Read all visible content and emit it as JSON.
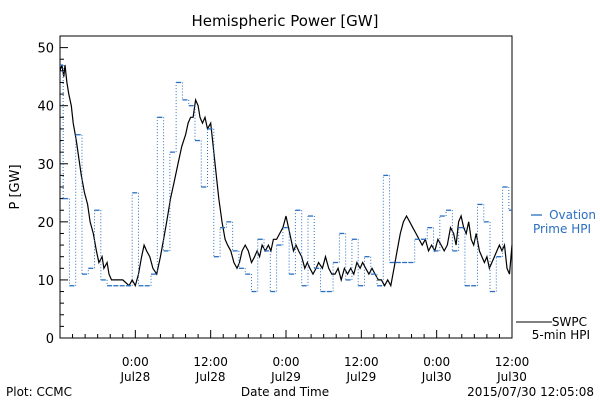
{
  "footer": {
    "plot_credit": "Plot: CCMC",
    "timestamp": "2015/07/30 12:05:08"
  },
  "chart_data": {
    "type": "line",
    "title": "Hemispheric Power [GW]",
    "xlabel": "Date and Time",
    "ylabel": "P [GW]",
    "ylim": [
      0,
      52
    ],
    "y_ticks": [
      0,
      10,
      20,
      30,
      40,
      50
    ],
    "x_unit": "hours since 2015-07-27 12:00 UT",
    "xlim": [
      0,
      72
    ],
    "x_ticks": [
      {
        "x": 12,
        "time": "0:00",
        "date": "Jul28"
      },
      {
        "x": 24,
        "time": "12:00",
        "date": "Jul28"
      },
      {
        "x": 36,
        "time": "0:00",
        "date": "Jul29"
      },
      {
        "x": 48,
        "time": "12:00",
        "date": "Jul29"
      },
      {
        "x": 60,
        "time": "0:00",
        "date": "Jul30"
      },
      {
        "x": 72,
        "time": "12:00",
        "date": "Jul30"
      }
    ],
    "grid": false,
    "colors": {
      "swpc": "#000000",
      "ovation": "#2a6fc0"
    },
    "legend": [
      {
        "key": "ovation",
        "lines": [
          "Ovation",
          "Prime HPI"
        ],
        "color": "#2a6fc0",
        "style": "dashed"
      },
      {
        "key": "swpc",
        "lines": [
          "SWPC",
          "5-min HPI"
        ],
        "color": "#000000",
        "style": "solid"
      }
    ],
    "series": [
      {
        "name": "SWPC 5-min HPI",
        "color": "#000000",
        "style": "solid",
        "points": [
          [
            0.0,
            46
          ],
          [
            0.3,
            47
          ],
          [
            0.6,
            45
          ],
          [
            0.8,
            47
          ],
          [
            1.1,
            44
          ],
          [
            1.4,
            42
          ],
          [
            1.8,
            40
          ],
          [
            2.1,
            37
          ],
          [
            2.6,
            34
          ],
          [
            3.0,
            31
          ],
          [
            3.4,
            28
          ],
          [
            3.9,
            25
          ],
          [
            4.4,
            23
          ],
          [
            4.8,
            20
          ],
          [
            5.3,
            18
          ],
          [
            5.8,
            15
          ],
          [
            6.2,
            13
          ],
          [
            6.7,
            14
          ],
          [
            7.0,
            12
          ],
          [
            7.5,
            13
          ],
          [
            7.8,
            11
          ],
          [
            8.2,
            10
          ],
          [
            9.0,
            10
          ],
          [
            10.0,
            10
          ],
          [
            11.0,
            9
          ],
          [
            11.5,
            10
          ],
          [
            12.0,
            9
          ],
          [
            12.5,
            11
          ],
          [
            13.0,
            14
          ],
          [
            13.4,
            16
          ],
          [
            13.8,
            15
          ],
          [
            14.3,
            14
          ],
          [
            14.8,
            12
          ],
          [
            15.4,
            11
          ],
          [
            16.0,
            14
          ],
          [
            16.5,
            17
          ],
          [
            17.0,
            20
          ],
          [
            17.6,
            24
          ],
          [
            18.2,
            27
          ],
          [
            18.8,
            30
          ],
          [
            19.4,
            33
          ],
          [
            20.0,
            35
          ],
          [
            20.4,
            37
          ],
          [
            20.8,
            38
          ],
          [
            21.2,
            38
          ],
          [
            21.6,
            41
          ],
          [
            22.0,
            40
          ],
          [
            22.3,
            38
          ],
          [
            22.7,
            37
          ],
          [
            23.1,
            38
          ],
          [
            23.5,
            36
          ],
          [
            24.0,
            37
          ],
          [
            24.4,
            33
          ],
          [
            24.9,
            28
          ],
          [
            25.3,
            24
          ],
          [
            25.8,
            20
          ],
          [
            26.3,
            17
          ],
          [
            26.7,
            16
          ],
          [
            27.2,
            15
          ],
          [
            27.7,
            13
          ],
          [
            28.2,
            12
          ],
          [
            28.6,
            13
          ],
          [
            29.0,
            15
          ],
          [
            29.5,
            16
          ],
          [
            30.0,
            15
          ],
          [
            30.5,
            13
          ],
          [
            31.0,
            14
          ],
          [
            31.4,
            15
          ],
          [
            31.8,
            14
          ],
          [
            32.2,
            16
          ],
          [
            32.7,
            15
          ],
          [
            33.2,
            16
          ],
          [
            33.6,
            15
          ],
          [
            34.0,
            17
          ],
          [
            34.5,
            17
          ],
          [
            35.0,
            18
          ],
          [
            35.5,
            19
          ],
          [
            36.0,
            21
          ],
          [
            36.4,
            19
          ],
          [
            36.8,
            17
          ],
          [
            37.2,
            15
          ],
          [
            37.6,
            16
          ],
          [
            38.0,
            15
          ],
          [
            38.5,
            14
          ],
          [
            39.0,
            12
          ],
          [
            39.4,
            13
          ],
          [
            39.8,
            12
          ],
          [
            40.3,
            11
          ],
          [
            40.8,
            12
          ],
          [
            41.2,
            13
          ],
          [
            41.8,
            12
          ],
          [
            42.3,
            14
          ],
          [
            42.8,
            12
          ],
          [
            43.3,
            11
          ],
          [
            43.8,
            11
          ],
          [
            44.3,
            12
          ],
          [
            44.8,
            10
          ],
          [
            45.3,
            12
          ],
          [
            45.8,
            11
          ],
          [
            46.3,
            12
          ],
          [
            46.8,
            11
          ],
          [
            47.3,
            13
          ],
          [
            47.8,
            12
          ],
          [
            48.2,
            13
          ],
          [
            48.7,
            12
          ],
          [
            49.2,
            11
          ],
          [
            49.7,
            12
          ],
          [
            50.2,
            11
          ],
          [
            50.7,
            10
          ],
          [
            51.2,
            10
          ],
          [
            51.7,
            9
          ],
          [
            52.2,
            10
          ],
          [
            52.7,
            9
          ],
          [
            53.2,
            12
          ],
          [
            53.7,
            15
          ],
          [
            54.2,
            18
          ],
          [
            54.7,
            20
          ],
          [
            55.2,
            21
          ],
          [
            55.7,
            20
          ],
          [
            56.2,
            19
          ],
          [
            56.7,
            18
          ],
          [
            57.2,
            17
          ],
          [
            57.7,
            16
          ],
          [
            58.2,
            17
          ],
          [
            58.7,
            15
          ],
          [
            59.2,
            16
          ],
          [
            59.7,
            15
          ],
          [
            60.2,
            17
          ],
          [
            60.7,
            16
          ],
          [
            61.2,
            15
          ],
          [
            61.7,
            16
          ],
          [
            62.2,
            19
          ],
          [
            62.7,
            18
          ],
          [
            63.1,
            16
          ],
          [
            63.5,
            20
          ],
          [
            63.9,
            21
          ],
          [
            64.3,
            19
          ],
          [
            64.7,
            18
          ],
          [
            65.1,
            20
          ],
          [
            65.5,
            17
          ],
          [
            65.9,
            16
          ],
          [
            66.3,
            18
          ],
          [
            66.8,
            15
          ],
          [
            67.2,
            14
          ],
          [
            67.6,
            13
          ],
          [
            68.0,
            14
          ],
          [
            68.4,
            12
          ],
          [
            68.8,
            13
          ],
          [
            69.2,
            14
          ],
          [
            69.6,
            15
          ],
          [
            70.0,
            16
          ],
          [
            70.4,
            15
          ],
          [
            70.8,
            16
          ],
          [
            71.2,
            12
          ],
          [
            71.6,
            11
          ],
          [
            72.0,
            16
          ]
        ]
      },
      {
        "name": "Ovation Prime HPI",
        "color": "#2a6fc0",
        "style": "dashed-step",
        "points": [
          [
            0.0,
            47
          ],
          [
            0.5,
            24
          ],
          [
            1.5,
            9
          ],
          [
            2.5,
            35
          ],
          [
            3.5,
            11
          ],
          [
            4.5,
            12
          ],
          [
            5.5,
            22
          ],
          [
            6.5,
            10
          ],
          [
            7.5,
            9
          ],
          [
            8.5,
            9
          ],
          [
            9.5,
            9
          ],
          [
            10.5,
            9
          ],
          [
            11.5,
            25
          ],
          [
            12.5,
            9
          ],
          [
            13.5,
            9
          ],
          [
            14.5,
            11
          ],
          [
            15.5,
            38
          ],
          [
            16.5,
            15
          ],
          [
            17.5,
            32
          ],
          [
            18.5,
            44
          ],
          [
            19.5,
            41
          ],
          [
            20.5,
            40
          ],
          [
            21.5,
            34
          ],
          [
            22.5,
            26
          ],
          [
            23.5,
            36
          ],
          [
            24.5,
            14
          ],
          [
            25.5,
            19
          ],
          [
            26.5,
            20
          ],
          [
            27.5,
            15
          ],
          [
            28.5,
            12
          ],
          [
            29.5,
            11
          ],
          [
            30.5,
            8
          ],
          [
            31.5,
            17
          ],
          [
            32.5,
            15
          ],
          [
            33.5,
            8
          ],
          [
            34.5,
            16
          ],
          [
            35.5,
            19
          ],
          [
            36.5,
            11
          ],
          [
            37.5,
            22
          ],
          [
            38.5,
            9
          ],
          [
            39.5,
            21
          ],
          [
            40.5,
            12
          ],
          [
            41.5,
            8
          ],
          [
            42.5,
            8
          ],
          [
            43.5,
            13
          ],
          [
            44.5,
            18
          ],
          [
            45.5,
            10
          ],
          [
            46.5,
            17
          ],
          [
            47.5,
            9
          ],
          [
            48.5,
            14
          ],
          [
            49.5,
            11
          ],
          [
            50.5,
            9
          ],
          [
            51.5,
            28
          ],
          [
            52.5,
            13
          ],
          [
            53.5,
            13
          ],
          [
            54.5,
            13
          ],
          [
            55.5,
            13
          ],
          [
            56.5,
            17
          ],
          [
            57.5,
            17
          ],
          [
            58.5,
            19
          ],
          [
            59.5,
            15
          ],
          [
            60.5,
            21
          ],
          [
            61.5,
            22
          ],
          [
            62.5,
            15
          ],
          [
            63.5,
            19
          ],
          [
            64.5,
            9
          ],
          [
            65.5,
            9
          ],
          [
            66.5,
            23
          ],
          [
            67.5,
            20
          ],
          [
            68.5,
            8
          ],
          [
            69.5,
            14
          ],
          [
            70.5,
            26
          ],
          [
            71.5,
            22
          ],
          [
            72.0,
            22
          ]
        ]
      }
    ]
  }
}
